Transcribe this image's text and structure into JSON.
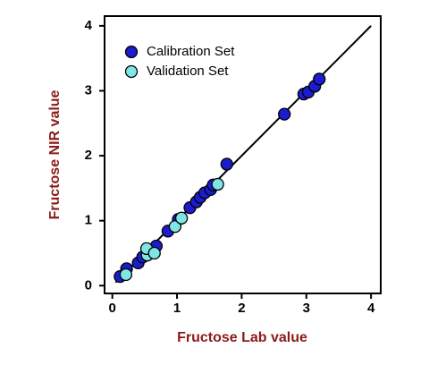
{
  "chart_data": {
    "type": "scatter",
    "x_label": "Fructose Lab value",
    "y_label": "Fructose NIR value",
    "xlim": [
      -0.12,
      4.15
    ],
    "ylim": [
      -0.12,
      4.15
    ],
    "xticks": [
      0,
      1,
      2,
      3,
      4
    ],
    "yticks": [
      0,
      1,
      2,
      3,
      4
    ],
    "reference_line": {
      "x": [
        0.05,
        4
      ],
      "y": [
        0.05,
        4
      ],
      "color": "#000000"
    },
    "legend": "upper left",
    "series": [
      {
        "name": "Calibration Set",
        "color": "#1c1ccf",
        "x": [
          0.12,
          0.22,
          0.4,
          0.47,
          0.58,
          0.68,
          0.86,
          1.02,
          1.2,
          1.3,
          1.36,
          1.43,
          1.52,
          1.56,
          1.77,
          2.66,
          2.96,
          3.03,
          3.13,
          3.2
        ],
        "y": [
          0.14,
          0.26,
          0.35,
          0.44,
          0.54,
          0.61,
          0.84,
          1.02,
          1.2,
          1.29,
          1.36,
          1.43,
          1.48,
          1.55,
          1.87,
          2.64,
          2.95,
          2.98,
          3.07,
          3.18
        ]
      },
      {
        "name": "Validation Set",
        "color": "#7ee6e6",
        "x": [
          0.21,
          0.54,
          0.53,
          0.65,
          0.97,
          1.07,
          1.63
        ],
        "y": [
          0.17,
          0.47,
          0.57,
          0.5,
          0.91,
          1.04,
          1.56
        ]
      }
    ]
  }
}
